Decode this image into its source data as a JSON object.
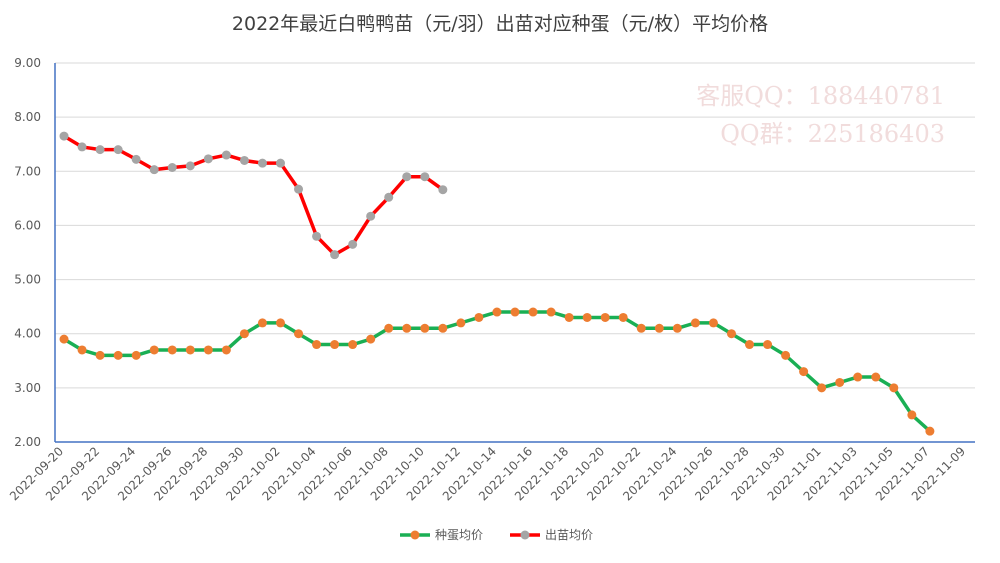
{
  "chart_data": {
    "type": "line",
    "title": "2022年最近白鸭鸭苗（元/羽）出苗对应种蛋（元/枚）平均价格",
    "watermark": [
      "客服QQ：188440781",
      "QQ群：225186403"
    ],
    "categories": [
      "2022-09-20",
      null,
      "2022-09-22",
      null,
      "2022-09-24",
      null,
      "2022-09-26",
      null,
      "2022-09-28",
      null,
      "2022-09-30",
      null,
      "2022-10-02",
      null,
      "2022-10-04",
      null,
      "2022-10-06",
      null,
      "2022-10-08",
      null,
      "2022-10-10",
      null,
      "2022-10-12",
      null,
      "2022-10-14",
      null,
      "2022-10-16",
      null,
      "2022-10-18",
      null,
      "2022-10-20",
      null,
      "2022-10-22",
      null,
      "2022-10-24",
      null,
      "2022-10-26",
      null,
      "2022-10-28",
      null,
      "2022-10-30",
      null,
      "2022-11-01",
      null,
      "2022-11-03",
      null,
      "2022-11-05",
      null,
      "2022-11-07",
      null,
      "2022-11-09"
    ],
    "series": [
      {
        "name": "种蛋均价",
        "color": "#1aaf54",
        "marker_color": "#ed7d31",
        "values": [
          3.9,
          3.7,
          3.6,
          3.6,
          3.6,
          3.7,
          3.7,
          3.7,
          3.7,
          3.7,
          4.0,
          4.2,
          4.2,
          4.0,
          3.8,
          3.8,
          3.8,
          3.9,
          4.1,
          4.1,
          4.1,
          4.1,
          4.2,
          4.3,
          4.4,
          4.4,
          4.4,
          4.4,
          4.3,
          4.3,
          4.3,
          4.3,
          4.1,
          4.1,
          4.1,
          4.2,
          4.2,
          4.0,
          3.8,
          3.8,
          3.6,
          3.3,
          3.0,
          3.1,
          3.2,
          3.2,
          3.0,
          2.5,
          2.2,
          null,
          null
        ]
      },
      {
        "name": "出苗均价",
        "color": "#ff0000",
        "marker_color": "#a5a5a5",
        "values": [
          7.65,
          7.45,
          7.4,
          7.4,
          7.22,
          7.03,
          7.07,
          7.1,
          7.23,
          7.3,
          7.2,
          7.15,
          7.15,
          6.67,
          5.8,
          5.46,
          5.65,
          6.17,
          6.52,
          6.9,
          6.9,
          6.66,
          null,
          null,
          null,
          null,
          null,
          null,
          null,
          null,
          null,
          null,
          null,
          null,
          null,
          null,
          null,
          null,
          null,
          null,
          null,
          null,
          null,
          null,
          null,
          null,
          null,
          null,
          null,
          null,
          null
        ]
      }
    ],
    "ylim": [
      2,
      9
    ],
    "yticks": [
      {
        "value": 2,
        "label": "2.00"
      },
      {
        "value": 3,
        "label": "3.00"
      },
      {
        "value": 4,
        "label": "4.00"
      },
      {
        "value": 5,
        "label": "5.00"
      },
      {
        "value": 6,
        "label": "6.00"
      },
      {
        "value": 7,
        "label": "7.00"
      },
      {
        "value": 8,
        "label": "8.00"
      },
      {
        "value": 9,
        "label": "9.00"
      }
    ],
    "grid": true,
    "legend": "bottom"
  }
}
